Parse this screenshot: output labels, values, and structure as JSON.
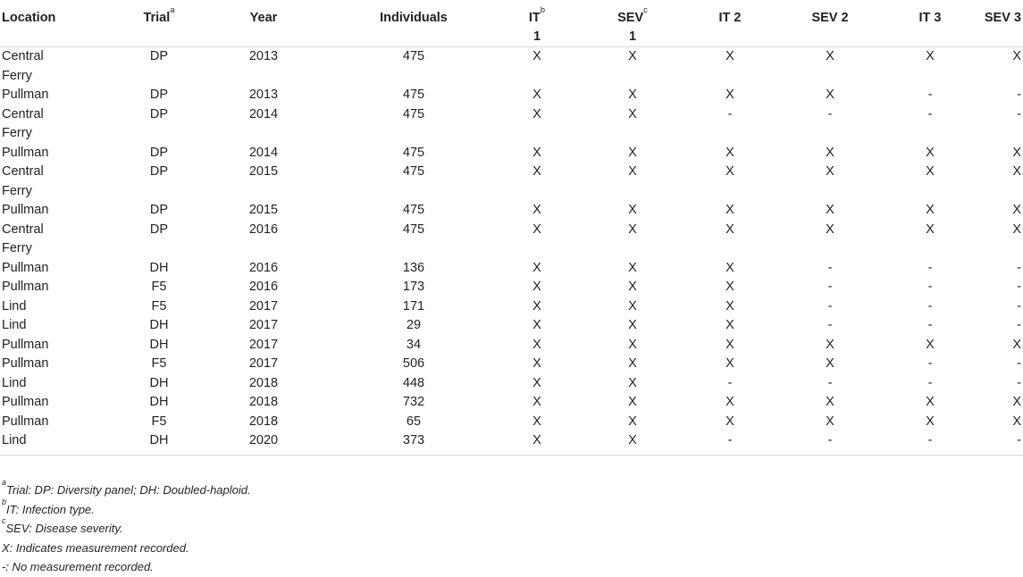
{
  "headers": {
    "location": "Location",
    "trial": "Trial",
    "trial_sup": "a",
    "year": "Year",
    "individuals": "Individuals",
    "it1": "IT",
    "it1_sup": "b",
    "it1_line2": "1",
    "sev1": "SEV",
    "sev1_sup": "c",
    "sev1_line2": "1",
    "it2": "IT 2",
    "sev2": "SEV 2",
    "it3": "IT 3",
    "sev3": "SEV 3"
  },
  "rows": [
    {
      "location": "Central Ferry",
      "trial": "DP",
      "year": "2013",
      "individuals": "475",
      "it1": "X",
      "sev1": "X",
      "it2": "X",
      "sev2": "X",
      "it3": "X",
      "sev3": "X"
    },
    {
      "location": "Pullman",
      "trial": "DP",
      "year": "2013",
      "individuals": "475",
      "it1": "X",
      "sev1": "X",
      "it2": "X",
      "sev2": "X",
      "it3": "-",
      "sev3": "-"
    },
    {
      "location": "Central Ferry",
      "trial": "DP",
      "year": "2014",
      "individuals": "475",
      "it1": "X",
      "sev1": "X",
      "it2": "-",
      "sev2": "-",
      "it3": "-",
      "sev3": "-"
    },
    {
      "location": "Pullman",
      "trial": "DP",
      "year": "2014",
      "individuals": "475",
      "it1": "X",
      "sev1": "X",
      "it2": "X",
      "sev2": "X",
      "it3": "X",
      "sev3": "X"
    },
    {
      "location": "Central Ferry",
      "trial": "DP",
      "year": "2015",
      "individuals": "475",
      "it1": "X",
      "sev1": "X",
      "it2": "X",
      "sev2": "X",
      "it3": "X",
      "sev3": "X"
    },
    {
      "location": "Pullman",
      "trial": "DP",
      "year": "2015",
      "individuals": "475",
      "it1": "X",
      "sev1": "X",
      "it2": "X",
      "sev2": "X",
      "it3": "X",
      "sev3": "X"
    },
    {
      "location": "Central Ferry",
      "trial": "DP",
      "year": "2016",
      "individuals": "475",
      "it1": "X",
      "sev1": "X",
      "it2": "X",
      "sev2": "X",
      "it3": "X",
      "sev3": "X"
    },
    {
      "location": "Pullman",
      "trial": "DH",
      "year": "2016",
      "individuals": "136",
      "it1": "X",
      "sev1": "X",
      "it2": "X",
      "sev2": "-",
      "it3": "-",
      "sev3": "-"
    },
    {
      "location": "Pullman",
      "trial": "F5",
      "year": "2016",
      "individuals": "173",
      "it1": "X",
      "sev1": "X",
      "it2": "X",
      "sev2": "-",
      "it3": "-",
      "sev3": "-"
    },
    {
      "location": "Lind",
      "trial": "F5",
      "year": "2017",
      "individuals": "171",
      "it1": "X",
      "sev1": "X",
      "it2": "X",
      "sev2": "-",
      "it3": "-",
      "sev3": "-"
    },
    {
      "location": "Lind",
      "trial": "DH",
      "year": "2017",
      "individuals": "29",
      "it1": "X",
      "sev1": "X",
      "it2": "X",
      "sev2": "-",
      "it3": "-",
      "sev3": "-"
    },
    {
      "location": "Pullman",
      "trial": "DH",
      "year": "2017",
      "individuals": "34",
      "it1": "X",
      "sev1": "X",
      "it2": "X",
      "sev2": "X",
      "it3": "X",
      "sev3": "X"
    },
    {
      "location": "Pullman",
      "trial": "F5",
      "year": "2017",
      "individuals": "506",
      "it1": "X",
      "sev1": "X",
      "it2": "X",
      "sev2": "X",
      "it3": "-",
      "sev3": "-"
    },
    {
      "location": "Lind",
      "trial": "DH",
      "year": "2018",
      "individuals": "448",
      "it1": "X",
      "sev1": "X",
      "it2": "-",
      "sev2": "-",
      "it3": "-",
      "sev3": "-"
    },
    {
      "location": "Pullman",
      "trial": "DH",
      "year": "2018",
      "individuals": "732",
      "it1": "X",
      "sev1": "X",
      "it2": "X",
      "sev2": "X",
      "it3": "X",
      "sev3": "X"
    },
    {
      "location": "Pullman",
      "trial": "F5",
      "year": "2018",
      "individuals": "65",
      "it1": "X",
      "sev1": "X",
      "it2": "X",
      "sev2": "X",
      "it3": "X",
      "sev3": "X"
    },
    {
      "location": "Lind",
      "trial": "DH",
      "year": "2020",
      "individuals": "373",
      "it1": "X",
      "sev1": "X",
      "it2": "-",
      "sev2": "-",
      "it3": "-",
      "sev3": "-"
    }
  ],
  "footnotes": [
    {
      "sup": "a",
      "text": "Trial: DP: Diversity panel; DH: Doubled-haploid."
    },
    {
      "sup": "b",
      "text": "IT: Infection type."
    },
    {
      "sup": "c",
      "text": "SEV: Disease severity."
    },
    {
      "sup": "",
      "text": "X: Indicates measurement recorded."
    },
    {
      "sup": "",
      "text": "-: No measurement recorded."
    }
  ]
}
